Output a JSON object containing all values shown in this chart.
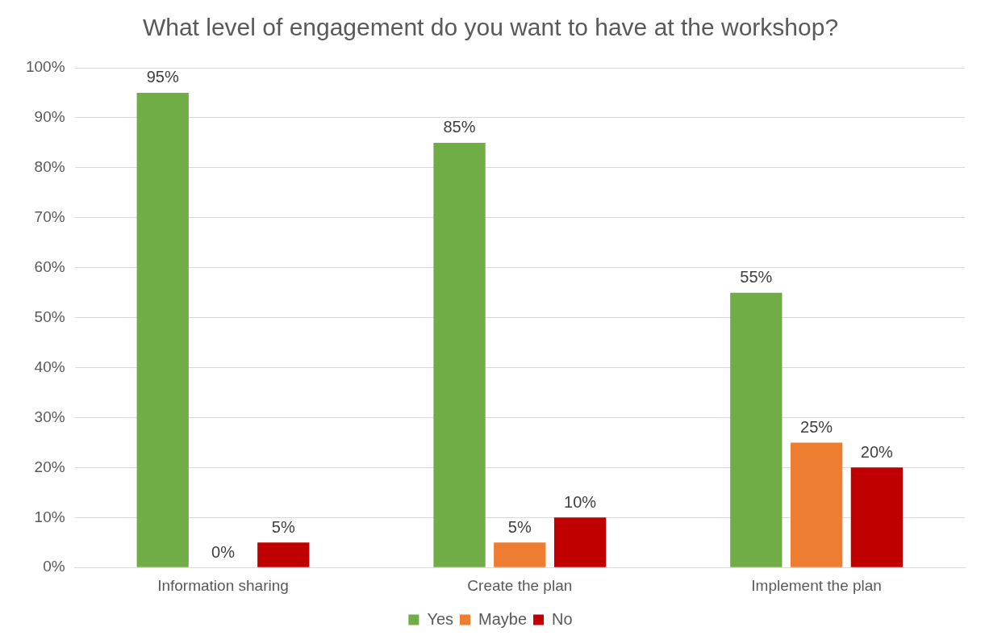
{
  "chart_data": {
    "type": "bar",
    "title": "What level of engagement do you want to have at the workshop?",
    "categories": [
      "Information sharing",
      "Create the plan",
      "Implement the plan"
    ],
    "series": [
      {
        "name": "Yes",
        "color": "#70ad47",
        "values": [
          95,
          85,
          55
        ],
        "value_labels": [
          "95%",
          "85%",
          "55%"
        ]
      },
      {
        "name": "Maybe",
        "color": "#ed7d31",
        "values": [
          0,
          5,
          25
        ],
        "value_labels": [
          "0%",
          "5%",
          "25%"
        ]
      },
      {
        "name": "No",
        "color": "#c00000",
        "values": [
          5,
          10,
          20
        ],
        "value_labels": [
          "5%",
          "10%",
          "20%"
        ]
      }
    ],
    "ylim": [
      0,
      100
    ],
    "yticks": [
      {
        "value": 0,
        "label": "0%"
      },
      {
        "value": 10,
        "label": "10%"
      },
      {
        "value": 20,
        "label": "20%"
      },
      {
        "value": 30,
        "label": "30%"
      },
      {
        "value": 40,
        "label": "40%"
      },
      {
        "value": 50,
        "label": "50%"
      },
      {
        "value": 60,
        "label": "60%"
      },
      {
        "value": 70,
        "label": "70%"
      },
      {
        "value": 80,
        "label": "80%"
      },
      {
        "value": 90,
        "label": "90%"
      },
      {
        "value": 100,
        "label": "100%"
      }
    ],
    "grid": "y",
    "legend": "bottom"
  }
}
